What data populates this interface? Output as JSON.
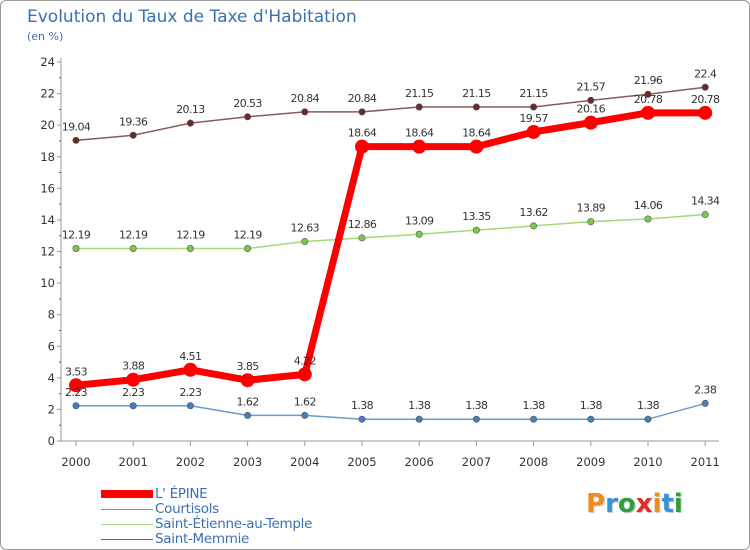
{
  "title": "Evolution du Taux de Taxe d'Habitation",
  "subtitle": "(en %)",
  "logo": {
    "text": "Proxiti",
    "letters": [
      {
        "ch": "P",
        "color": "#f08c1e"
      },
      {
        "ch": "r",
        "color": "#3b8fd6"
      },
      {
        "ch": "o",
        "color": "#2e9e3e"
      },
      {
        "ch": "x",
        "color": "#e32b2b"
      },
      {
        "ch": "i",
        "color": "#f08c1e"
      },
      {
        "ch": "t",
        "color": "#3b8fd6"
      },
      {
        "ch": "i",
        "color": "#2e9e3e"
      }
    ]
  },
  "chart_data": {
    "type": "line",
    "title": "Evolution du Taux de Taxe d'Habitation",
    "ylabel": "(en %)",
    "xlabel": "",
    "ylim": [
      0,
      24
    ],
    "yticks": [
      0,
      2,
      4,
      6,
      8,
      10,
      12,
      14,
      16,
      18,
      20,
      22,
      24
    ],
    "grid": false,
    "legend": "bottom-left",
    "x": [
      "2000",
      "2001",
      "2002",
      "2003",
      "2004",
      "2005",
      "2006",
      "2007",
      "2008",
      "2009",
      "2010",
      "2011"
    ],
    "series": [
      {
        "name": "L' ÉPINE",
        "color": "#ff0000",
        "marker_color": "#ff0000",
        "emphasis": true,
        "values": [
          3.53,
          3.88,
          4.51,
          3.85,
          4.22,
          18.64,
          18.64,
          18.64,
          19.57,
          20.16,
          20.78,
          20.78
        ],
        "labels": [
          "3.53",
          "3.88",
          "4.51",
          "3.85",
          "4.22",
          "18.64",
          "18.64",
          "18.64",
          "19.57",
          "20.16",
          "20.78",
          "20.78"
        ]
      },
      {
        "name": "Courtisols",
        "color": "#6a9cc6",
        "marker_color": "#3f80c1",
        "emphasis": false,
        "values": [
          2.23,
          2.23,
          2.23,
          1.62,
          1.62,
          1.38,
          1.38,
          1.38,
          1.38,
          1.38,
          1.38,
          2.38
        ],
        "labels": [
          "2.23",
          "2.23",
          "2.23",
          "1.62",
          "1.62",
          "1.38",
          "1.38",
          "1.38",
          "1.38",
          "1.38",
          "1.38",
          "2.38"
        ]
      },
      {
        "name": "Saint-Étienne-au-Temple",
        "color": "#a5d97a",
        "marker_color": "#7cc94a",
        "emphasis": false,
        "values": [
          12.19,
          12.19,
          12.19,
          12.19,
          12.63,
          12.86,
          13.09,
          13.35,
          13.62,
          13.89,
          14.06,
          14.34
        ],
        "labels": [
          "12.19",
          "12.19",
          "12.19",
          "12.19",
          "12.63",
          "12.86",
          "13.09",
          "13.35",
          "13.62",
          "13.89",
          "14.06",
          "14.34"
        ]
      },
      {
        "name": "Saint-Memmie",
        "color": "#8a5a5a",
        "marker_color": "#6b2a2a",
        "emphasis": false,
        "values": [
          19.04,
          19.36,
          20.13,
          20.53,
          20.84,
          20.84,
          21.15,
          21.15,
          21.15,
          21.57,
          21.96,
          22.4
        ],
        "labels": [
          "19.04",
          "19.36",
          "20.13",
          "20.53",
          "20.84",
          "20.84",
          "21.15",
          "21.15",
          "21.15",
          "21.57",
          "21.96",
          "22.4"
        ]
      }
    ]
  }
}
